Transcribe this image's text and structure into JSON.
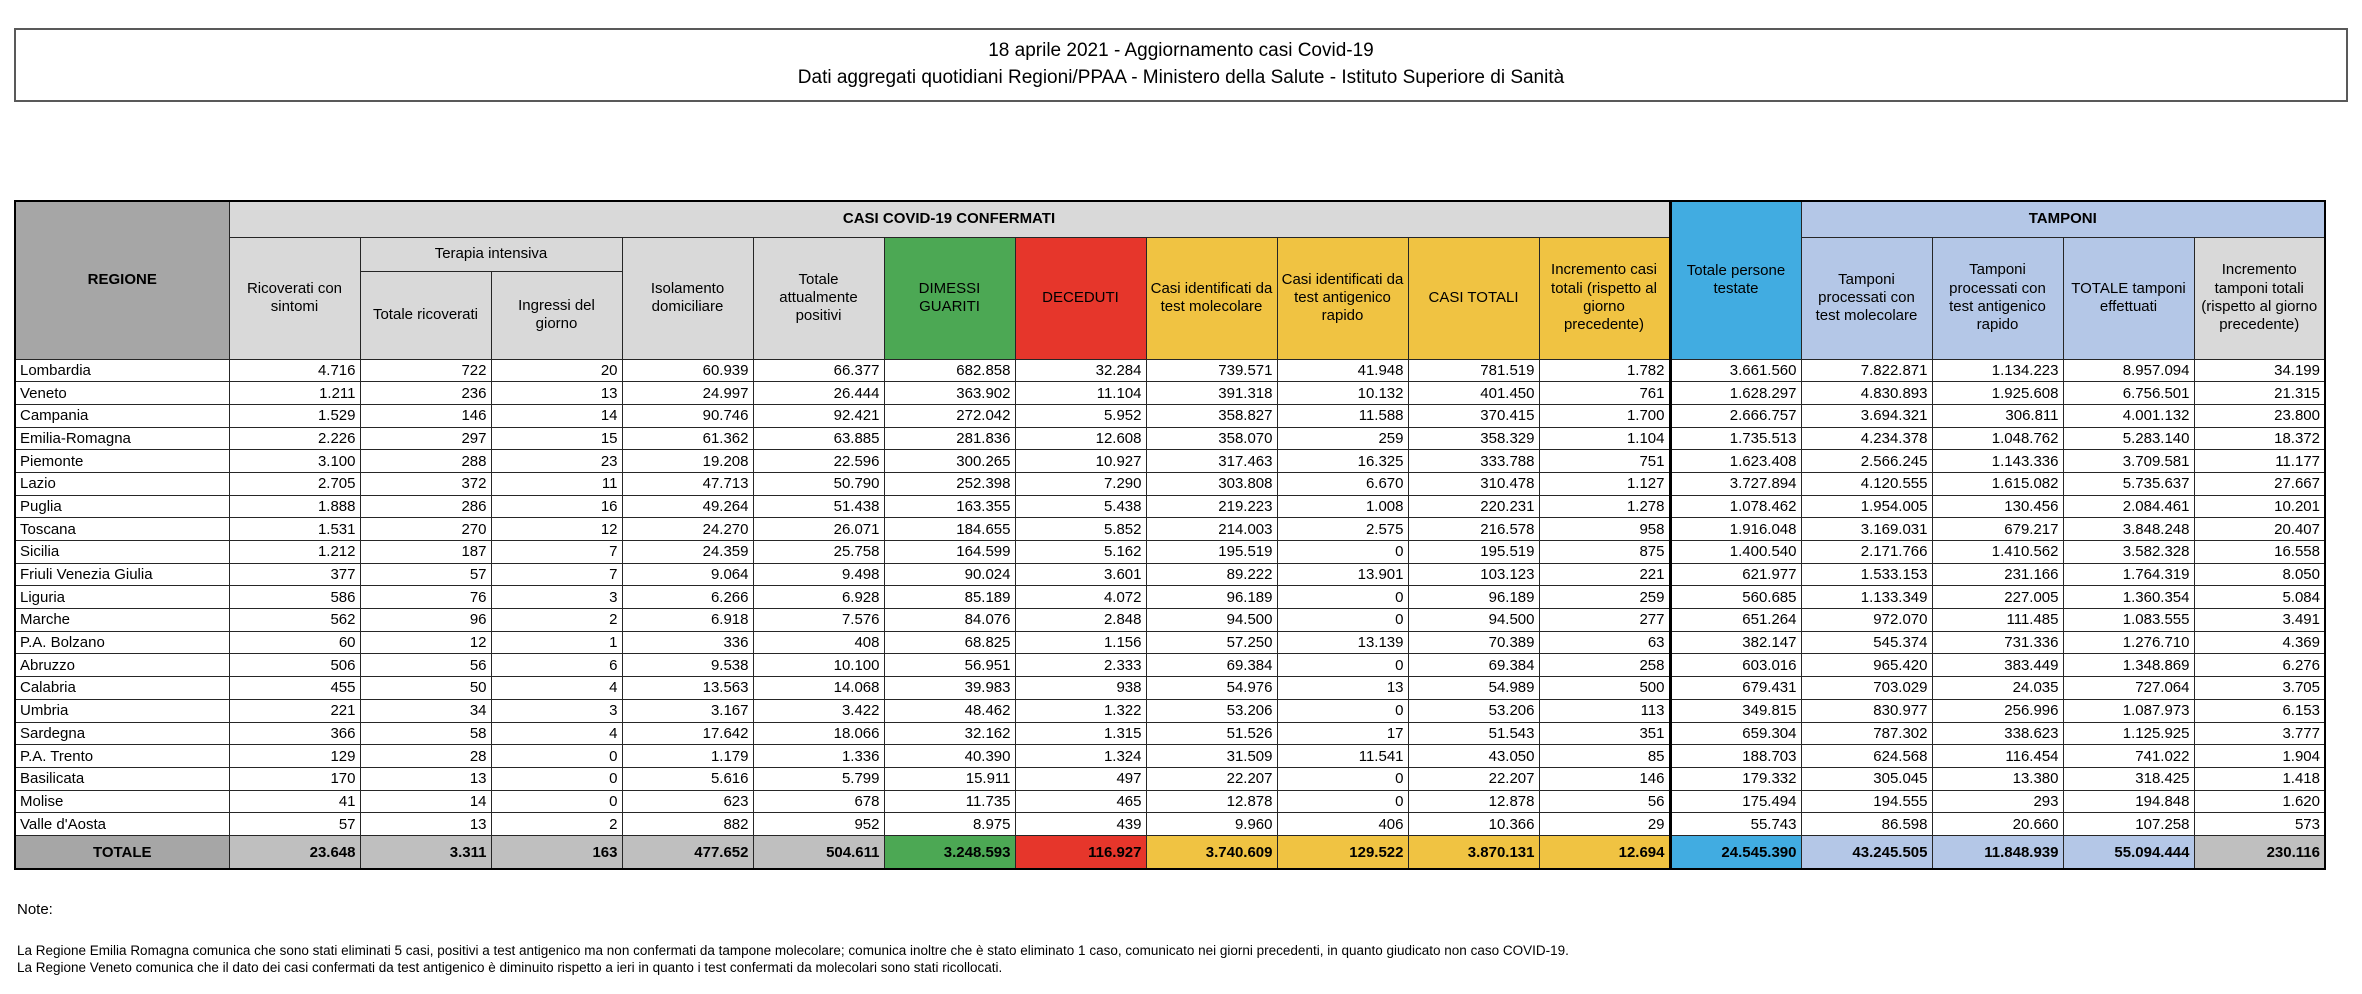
{
  "title": {
    "line1": "18 aprile 2021 - Aggiornamento casi Covid-19",
    "line2": "Dati aggregati quotidiani Regioni/PPAA - Ministero della Salute - Istituto Superiore di Sanità"
  },
  "colors": {
    "green": "#4CA854",
    "red": "#E6362B",
    "yellow": "#F0C342",
    "blue": "#41ACE1",
    "lavender": "#B4C7E7",
    "header_gray": "#D9D9D9",
    "dark_gray": "#A6A6A6",
    "totale_gray": "#BFBFBF"
  },
  "table": {
    "group_headers": {
      "casi": "CASI COVID-19 CONFERMATI",
      "tamponi": "TAMPONI"
    },
    "headers": {
      "regione": "REGIONE",
      "ricoverati": "Ricoverati con sintomi",
      "terapia_intensiva": "Terapia intensiva",
      "ti_totale": "Totale ricoverati",
      "ti_ingressi": "Ingressi del giorno",
      "isolamento": "Isolamento domiciliare",
      "positivi": "Totale attualmente positivi",
      "guariti": "DIMESSI GUARITI",
      "deceduti": "DECEDUTI",
      "molecolare": "Casi identificati da test molecolare",
      "antigenico": "Casi identificati da test antigenico rapido",
      "casi_totali": "CASI TOTALI",
      "incremento_casi": "Incremento casi totali (rispetto al giorno precedente)",
      "testate": "Totale persone testate",
      "tamponi_molecolare": "Tamponi processati con test molecolare",
      "tamponi_antigenico": "Tamponi processati con test antigenico rapido",
      "tamponi_totale": "TOTALE tamponi effettuati",
      "incremento_tamponi": "Incremento tamponi totali (rispetto al giorno precedente)"
    },
    "rows": [
      {
        "regione": "Lombardia",
        "values": [
          "4.716",
          "722",
          "20",
          "60.939",
          "66.377",
          "682.858",
          "32.284",
          "739.571",
          "41.948",
          "781.519",
          "1.782",
          "3.661.560",
          "7.822.871",
          "1.134.223",
          "8.957.094",
          "34.199"
        ]
      },
      {
        "regione": "Veneto",
        "values": [
          "1.211",
          "236",
          "13",
          "24.997",
          "26.444",
          "363.902",
          "11.104",
          "391.318",
          "10.132",
          "401.450",
          "761",
          "1.628.297",
          "4.830.893",
          "1.925.608",
          "6.756.501",
          "21.315"
        ]
      },
      {
        "regione": "Campania",
        "values": [
          "1.529",
          "146",
          "14",
          "90.746",
          "92.421",
          "272.042",
          "5.952",
          "358.827",
          "11.588",
          "370.415",
          "1.700",
          "2.666.757",
          "3.694.321",
          "306.811",
          "4.001.132",
          "23.800"
        ]
      },
      {
        "regione": "Emilia-Romagna",
        "values": [
          "2.226",
          "297",
          "15",
          "61.362",
          "63.885",
          "281.836",
          "12.608",
          "358.070",
          "259",
          "358.329",
          "1.104",
          "1.735.513",
          "4.234.378",
          "1.048.762",
          "5.283.140",
          "18.372"
        ]
      },
      {
        "regione": "Piemonte",
        "values": [
          "3.100",
          "288",
          "23",
          "19.208",
          "22.596",
          "300.265",
          "10.927",
          "317.463",
          "16.325",
          "333.788",
          "751",
          "1.623.408",
          "2.566.245",
          "1.143.336",
          "3.709.581",
          "11.177"
        ]
      },
      {
        "regione": "Lazio",
        "values": [
          "2.705",
          "372",
          "11",
          "47.713",
          "50.790",
          "252.398",
          "7.290",
          "303.808",
          "6.670",
          "310.478",
          "1.127",
          "3.727.894",
          "4.120.555",
          "1.615.082",
          "5.735.637",
          "27.667"
        ]
      },
      {
        "regione": "Puglia",
        "values": [
          "1.888",
          "286",
          "16",
          "49.264",
          "51.438",
          "163.355",
          "5.438",
          "219.223",
          "1.008",
          "220.231",
          "1.278",
          "1.078.462",
          "1.954.005",
          "130.456",
          "2.084.461",
          "10.201"
        ]
      },
      {
        "regione": "Toscana",
        "values": [
          "1.531",
          "270",
          "12",
          "24.270",
          "26.071",
          "184.655",
          "5.852",
          "214.003",
          "2.575",
          "216.578",
          "958",
          "1.916.048",
          "3.169.031",
          "679.217",
          "3.848.248",
          "20.407"
        ]
      },
      {
        "regione": "Sicilia",
        "values": [
          "1.212",
          "187",
          "7",
          "24.359",
          "25.758",
          "164.599",
          "5.162",
          "195.519",
          "0",
          "195.519",
          "875",
          "1.400.540",
          "2.171.766",
          "1.410.562",
          "3.582.328",
          "16.558"
        ]
      },
      {
        "regione": "Friuli Venezia Giulia",
        "values": [
          "377",
          "57",
          "7",
          "9.064",
          "9.498",
          "90.024",
          "3.601",
          "89.222",
          "13.901",
          "103.123",
          "221",
          "621.977",
          "1.533.153",
          "231.166",
          "1.764.319",
          "8.050"
        ]
      },
      {
        "regione": "Liguria",
        "values": [
          "586",
          "76",
          "3",
          "6.266",
          "6.928",
          "85.189",
          "4.072",
          "96.189",
          "0",
          "96.189",
          "259",
          "560.685",
          "1.133.349",
          "227.005",
          "1.360.354",
          "5.084"
        ]
      },
      {
        "regione": "Marche",
        "values": [
          "562",
          "96",
          "2",
          "6.918",
          "7.576",
          "84.076",
          "2.848",
          "94.500",
          "0",
          "94.500",
          "277",
          "651.264",
          "972.070",
          "111.485",
          "1.083.555",
          "3.491"
        ]
      },
      {
        "regione": "P.A. Bolzano",
        "values": [
          "60",
          "12",
          "1",
          "336",
          "408",
          "68.825",
          "1.156",
          "57.250",
          "13.139",
          "70.389",
          "63",
          "382.147",
          "545.374",
          "731.336",
          "1.276.710",
          "4.369"
        ]
      },
      {
        "regione": "Abruzzo",
        "values": [
          "506",
          "56",
          "6",
          "9.538",
          "10.100",
          "56.951",
          "2.333",
          "69.384",
          "0",
          "69.384",
          "258",
          "603.016",
          "965.420",
          "383.449",
          "1.348.869",
          "6.276"
        ]
      },
      {
        "regione": "Calabria",
        "values": [
          "455",
          "50",
          "4",
          "13.563",
          "14.068",
          "39.983",
          "938",
          "54.976",
          "13",
          "54.989",
          "500",
          "679.431",
          "703.029",
          "24.035",
          "727.064",
          "3.705"
        ]
      },
      {
        "regione": "Umbria",
        "values": [
          "221",
          "34",
          "3",
          "3.167",
          "3.422",
          "48.462",
          "1.322",
          "53.206",
          "0",
          "53.206",
          "113",
          "349.815",
          "830.977",
          "256.996",
          "1.087.973",
          "6.153"
        ]
      },
      {
        "regione": "Sardegna",
        "values": [
          "366",
          "58",
          "4",
          "17.642",
          "18.066",
          "32.162",
          "1.315",
          "51.526",
          "17",
          "51.543",
          "351",
          "659.304",
          "787.302",
          "338.623",
          "1.125.925",
          "3.777"
        ]
      },
      {
        "regione": "P.A. Trento",
        "values": [
          "129",
          "28",
          "0",
          "1.179",
          "1.336",
          "40.390",
          "1.324",
          "31.509",
          "11.541",
          "43.050",
          "85",
          "188.703",
          "624.568",
          "116.454",
          "741.022",
          "1.904"
        ]
      },
      {
        "regione": "Basilicata",
        "values": [
          "170",
          "13",
          "0",
          "5.616",
          "5.799",
          "15.911",
          "497",
          "22.207",
          "0",
          "22.207",
          "146",
          "179.332",
          "305.045",
          "13.380",
          "318.425",
          "1.418"
        ]
      },
      {
        "regione": "Molise",
        "values": [
          "41",
          "14",
          "0",
          "623",
          "678",
          "11.735",
          "465",
          "12.878",
          "0",
          "12.878",
          "56",
          "175.494",
          "194.555",
          "293",
          "194.848",
          "1.620"
        ]
      },
      {
        "regione": "Valle d'Aosta",
        "values": [
          "57",
          "13",
          "2",
          "882",
          "952",
          "8.975",
          "439",
          "9.960",
          "406",
          "10.366",
          "29",
          "55.743",
          "86.598",
          "20.660",
          "107.258",
          "573"
        ]
      }
    ],
    "totale": {
      "regione": "TOTALE",
      "values": [
        "23.648",
        "3.311",
        "163",
        "477.652",
        "504.611",
        "3.248.593",
        "116.927",
        "3.740.609",
        "129.522",
        "3.870.131",
        "12.694",
        "24.545.390",
        "43.245.505",
        "11.848.939",
        "55.094.444",
        "230.116"
      ]
    }
  },
  "notes": {
    "label": "Note:",
    "lines": [
      "La Regione Emilia Romagna comunica che sono stati eliminati 5 casi, positivi a test antigenico ma non confermati da tampone molecolare; comunica inoltre che è stato eliminato 1 caso, comunicato nei giorni precedenti, in quanto giudicato non caso COVID-19.",
      "La Regione Veneto comunica che il dato dei casi confermati da test antigenico è diminuito rispetto a ieri in quanto i test confermati da molecolari sono stati ricollocati."
    ]
  }
}
